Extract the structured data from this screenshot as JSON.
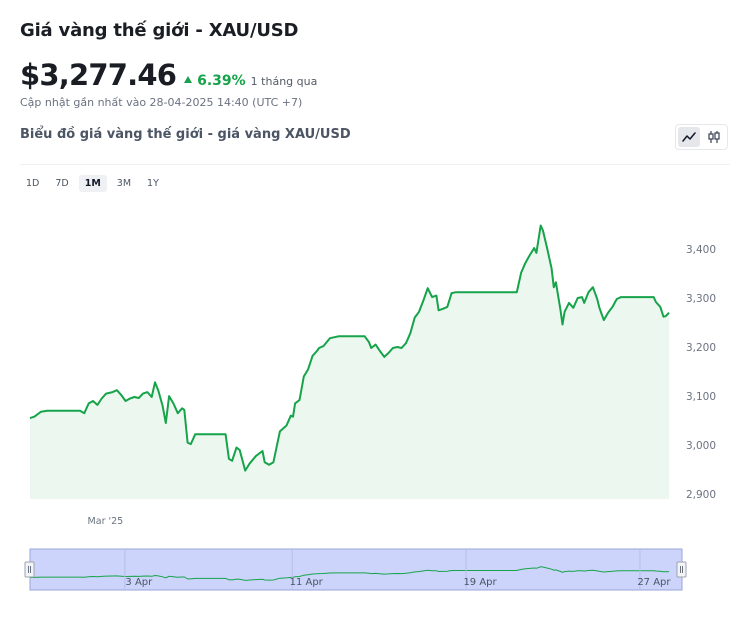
{
  "header": {
    "title": "Giá vàng thế giới - XAU/USD",
    "price": "$3,277.46",
    "change": "6.39%",
    "period": "1 tháng qua",
    "updated": "Cập nhật gần nhất vào 28-04-2025 14:40 (UTC +7)",
    "subtitle": "Biểu đồ giá vàng thế giới - giá vàng XAU/USD"
  },
  "chart_type_toggle": [
    {
      "icon": "line-chart-icon",
      "active": true
    },
    {
      "icon": "candlestick-icon",
      "active": false
    }
  ],
  "ranges": [
    {
      "label": "1D",
      "active": false
    },
    {
      "label": "7D",
      "active": false
    },
    {
      "label": "1M",
      "active": true
    },
    {
      "label": "3M",
      "active": false
    },
    {
      "label": "1Y",
      "active": false
    }
  ],
  "colors": {
    "line": "#16a34a",
    "area": "#ecf8ef",
    "navigator_fill": "#ccd4fb",
    "navigator_border": "#9ba6d8"
  },
  "chart_data": {
    "type": "area",
    "title": "",
    "xlabel": "",
    "ylabel": "",
    "ylim": [
      2890,
      3500
    ],
    "yticks": [
      2900,
      3000,
      3100,
      3200,
      3300,
      3400
    ],
    "ytick_labels": [
      "2,900",
      "3,000",
      "3,100",
      "3,200",
      "3,300",
      "3,400"
    ],
    "xticks": [
      {
        "label": "Mar '25",
        "x": 0.8
      }
    ],
    "x_range": [
      0,
      30
    ],
    "series": [
      {
        "values": [
          [
            0.0,
            3055
          ],
          [
            0.2,
            3058
          ],
          [
            0.5,
            3068
          ],
          [
            0.8,
            3070
          ],
          [
            1.2,
            3070
          ],
          [
            1.6,
            3070
          ],
          [
            2.0,
            3070
          ],
          [
            2.3,
            3070
          ],
          [
            2.5,
            3065
          ],
          [
            2.7,
            3085
          ],
          [
            2.9,
            3090
          ],
          [
            3.1,
            3082
          ],
          [
            3.3,
            3095
          ],
          [
            3.5,
            3105
          ],
          [
            3.8,
            3108
          ],
          [
            4.0,
            3112
          ],
          [
            4.2,
            3102
          ],
          [
            4.4,
            3090
          ],
          [
            4.6,
            3095
          ],
          [
            4.8,
            3098
          ],
          [
            5.0,
            3096
          ],
          [
            5.2,
            3105
          ],
          [
            5.4,
            3108
          ],
          [
            5.6,
            3098
          ],
          [
            5.75,
            3128
          ],
          [
            5.9,
            3112
          ],
          [
            6.1,
            3080
          ],
          [
            6.25,
            3045
          ],
          [
            6.4,
            3100
          ],
          [
            6.6,
            3085
          ],
          [
            6.8,
            3065
          ],
          [
            7.0,
            3075
          ],
          [
            7.1,
            3072
          ],
          [
            7.25,
            3005
          ],
          [
            7.4,
            3002
          ],
          [
            7.6,
            3022
          ],
          [
            8.0,
            3022
          ],
          [
            8.5,
            3022
          ],
          [
            8.9,
            3022
          ],
          [
            9.0,
            3022
          ],
          [
            9.15,
            2972
          ],
          [
            9.3,
            2968
          ],
          [
            9.5,
            2995
          ],
          [
            9.65,
            2990
          ],
          [
            9.9,
            2948
          ],
          [
            10.1,
            2962
          ],
          [
            10.4,
            2978
          ],
          [
            10.7,
            2988
          ],
          [
            10.8,
            2965
          ],
          [
            11.0,
            2960
          ],
          [
            11.2,
            2965
          ],
          [
            11.5,
            3028
          ],
          [
            11.8,
            3040
          ],
          [
            12.0,
            3060
          ],
          [
            12.1,
            3058
          ],
          [
            12.2,
            3085
          ],
          [
            12.4,
            3092
          ],
          [
            12.6,
            3140
          ],
          [
            12.8,
            3155
          ],
          [
            13.0,
            3182
          ],
          [
            13.2,
            3192
          ],
          [
            13.3,
            3198
          ],
          [
            13.5,
            3202
          ],
          [
            13.8,
            3218
          ],
          [
            14.2,
            3222
          ],
          [
            14.6,
            3222
          ],
          [
            15.0,
            3222
          ],
          [
            15.4,
            3222
          ],
          [
            15.6,
            3210
          ],
          [
            15.7,
            3198
          ],
          [
            15.9,
            3205
          ],
          [
            16.1,
            3192
          ],
          [
            16.3,
            3180
          ],
          [
            16.5,
            3188
          ],
          [
            16.7,
            3198
          ],
          [
            16.9,
            3200
          ],
          [
            17.1,
            3198
          ],
          [
            17.3,
            3208
          ],
          [
            17.5,
            3228
          ],
          [
            17.7,
            3260
          ],
          [
            17.9,
            3272
          ],
          [
            18.1,
            3295
          ],
          [
            18.3,
            3320
          ],
          [
            18.5,
            3302
          ],
          [
            18.7,
            3305
          ],
          [
            18.8,
            3275
          ],
          [
            19.0,
            3278
          ],
          [
            19.2,
            3282
          ],
          [
            19.4,
            3310
          ],
          [
            19.6,
            3312
          ],
          [
            20.0,
            3312
          ],
          [
            20.5,
            3312
          ],
          [
            21.0,
            3312
          ],
          [
            21.5,
            3312
          ],
          [
            22.0,
            3312
          ],
          [
            22.4,
            3312
          ],
          [
            22.6,
            3352
          ],
          [
            22.8,
            3372
          ],
          [
            23.0,
            3388
          ],
          [
            23.2,
            3402
          ],
          [
            23.3,
            3392
          ],
          [
            23.5,
            3448
          ],
          [
            23.6,
            3438
          ],
          [
            23.8,
            3400
          ],
          [
            24.0,
            3360
          ],
          [
            24.1,
            3322
          ],
          [
            24.2,
            3332
          ],
          [
            24.4,
            3278
          ],
          [
            24.5,
            3246
          ],
          [
            24.6,
            3272
          ],
          [
            24.8,
            3290
          ],
          [
            25.0,
            3280
          ],
          [
            25.2,
            3300
          ],
          [
            25.4,
            3302
          ],
          [
            25.5,
            3290
          ],
          [
            25.7,
            3312
          ],
          [
            25.9,
            3322
          ],
          [
            26.1,
            3298
          ],
          [
            26.2,
            3280
          ],
          [
            26.4,
            3255
          ],
          [
            26.6,
            3270
          ],
          [
            26.8,
            3282
          ],
          [
            27.0,
            3298
          ],
          [
            27.2,
            3302
          ],
          [
            27.6,
            3302
          ],
          [
            28.0,
            3302
          ],
          [
            28.4,
            3302
          ],
          [
            28.7,
            3302
          ],
          [
            28.8,
            3292
          ],
          [
            29.0,
            3282
          ],
          [
            29.15,
            3262
          ],
          [
            29.25,
            3263
          ],
          [
            29.4,
            3270
          ]
        ]
      }
    ]
  },
  "navigator": {
    "labels": [
      {
        "text": "3 Apr",
        "x": 5.1
      },
      {
        "text": "11 Apr",
        "x": 12.8
      },
      {
        "text": "19 Apr",
        "x": 20.8
      },
      {
        "text": "27 Apr",
        "x": 28.8
      }
    ]
  }
}
